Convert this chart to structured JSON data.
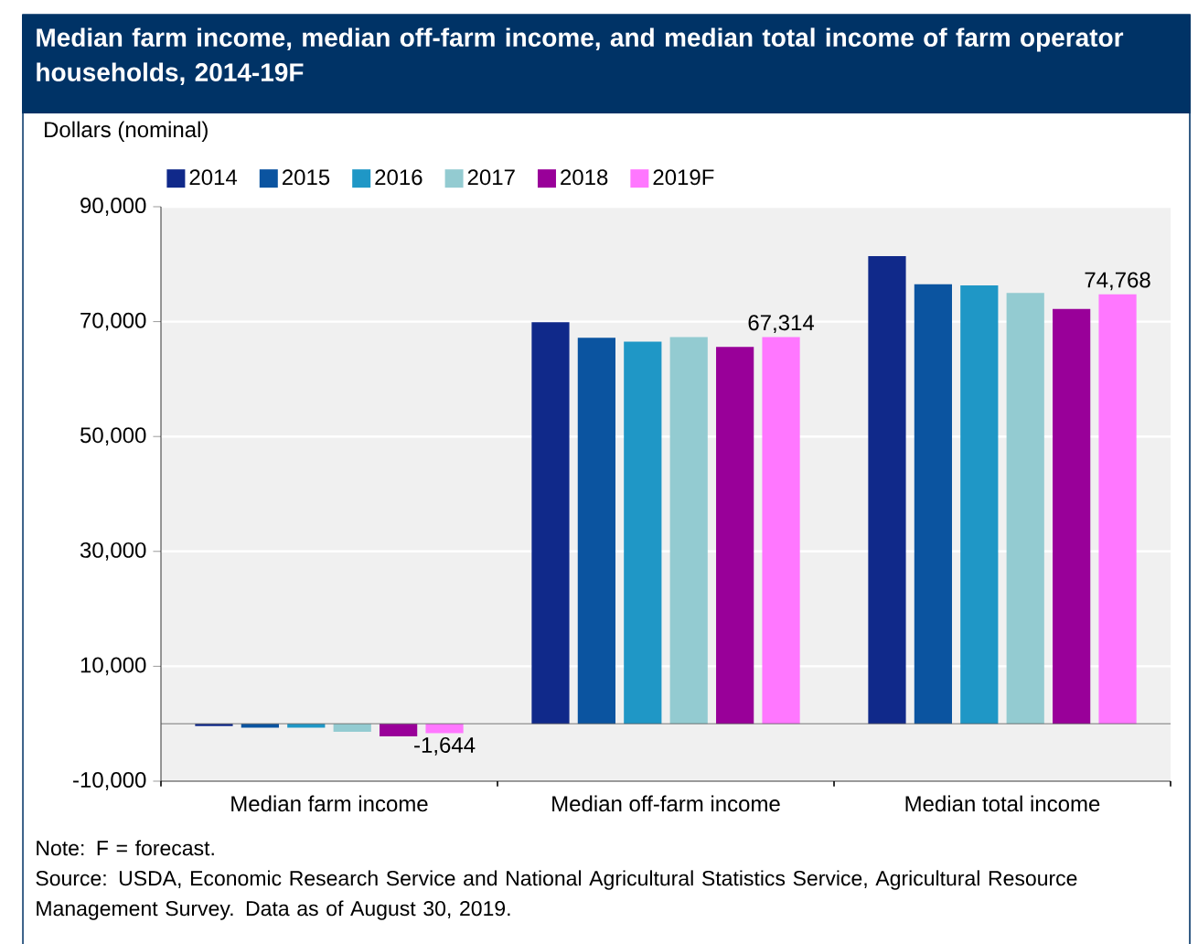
{
  "chart_data": {
    "type": "bar",
    "title": "Median farm income, median off-farm income, and median total income of farm operator households, 2014-19F",
    "ylabel": "Dollars (nominal)",
    "categories": [
      "Median farm income",
      "Median off-farm income",
      "Median total income"
    ],
    "series": [
      {
        "name": "2014",
        "color": "#10298a",
        "values": [
          -400,
          69900,
          81400
        ]
      },
      {
        "name": "2015",
        "color": "#0b54a0",
        "values": [
          -700,
          67200,
          76500
        ]
      },
      {
        "name": "2016",
        "color": "#1f97c6",
        "values": [
          -700,
          66500,
          76300
        ]
      },
      {
        "name": "2017",
        "color": "#93cbd1",
        "values": [
          -1400,
          67300,
          75000
        ]
      },
      {
        "name": "2018",
        "color": "#990099",
        "values": [
          -2200,
          65600,
          72200
        ]
      },
      {
        "name": "2019F",
        "color": "#ff77ff",
        "values": [
          -1644,
          67314,
          74768
        ],
        "value_labels": [
          "-1,644",
          "67,314",
          "74,768"
        ]
      }
    ],
    "ylim": [
      -10000,
      90000
    ],
    "yticks": [
      {
        "value": -10000,
        "label": "-10,000"
      },
      {
        "value": 10000,
        "label": "10,000"
      },
      {
        "value": 30000,
        "label": "30,000"
      },
      {
        "value": 50000,
        "label": "50,000"
      },
      {
        "value": 70000,
        "label": "70,000"
      },
      {
        "value": 90000,
        "label": "90,000"
      }
    ],
    "grid": "y",
    "legend": "top",
    "annotations": [
      "Note: F = forecast.",
      "Source: USDA, Economic Research Service and National Agricultural Statistics Service, Agricultural Resource Management Survey. Data as of August 30, 2019."
    ]
  }
}
